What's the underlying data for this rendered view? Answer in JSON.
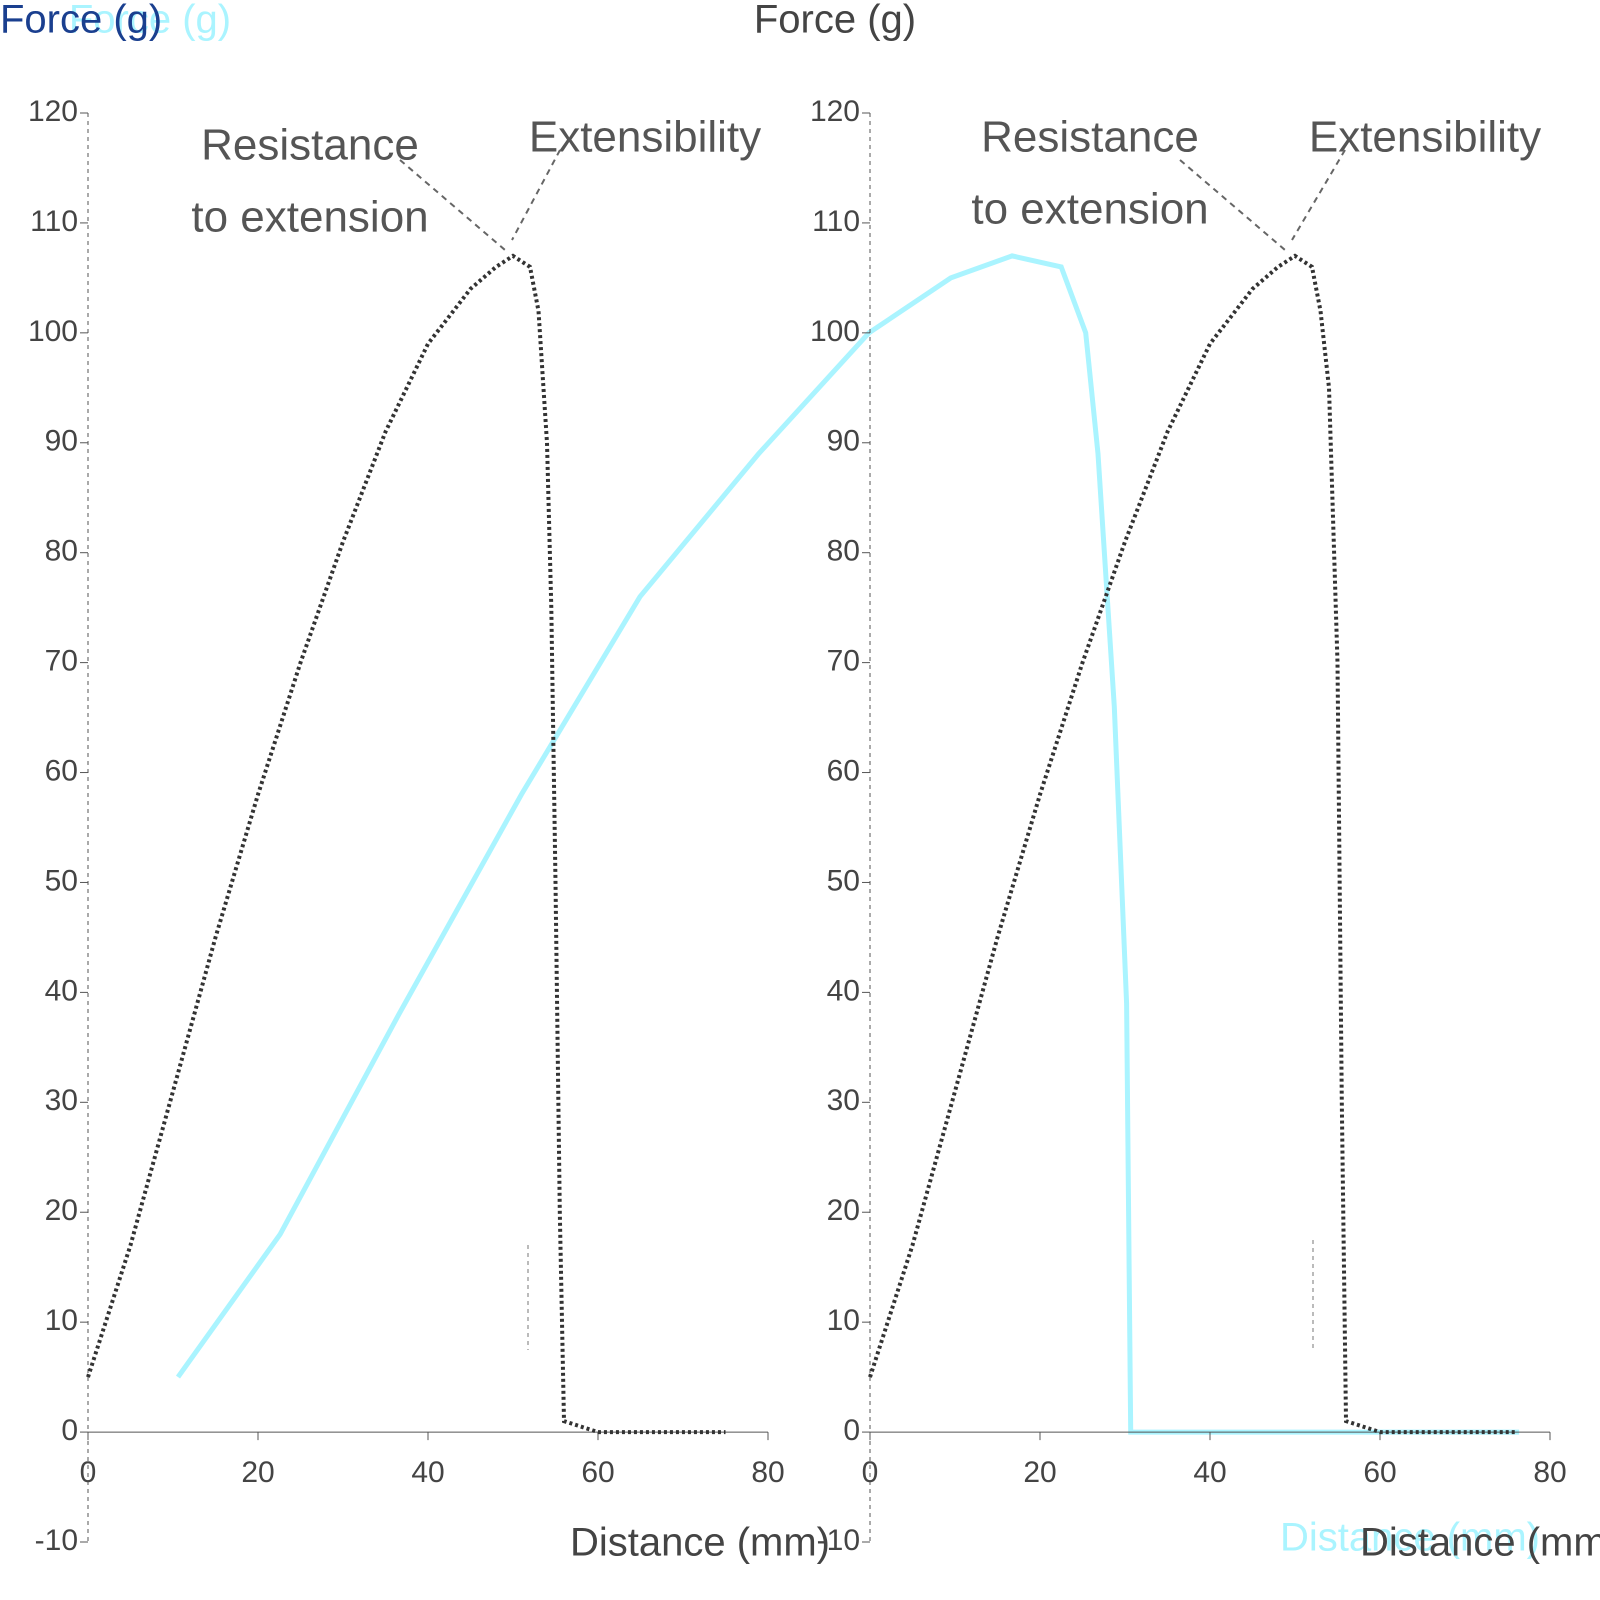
{
  "chart_data": [
    {
      "type": "line",
      "title": "Force (g)",
      "x_label": "Distance (mm)",
      "annotations": [
        [
          "Resistance",
          "to extension"
        ],
        [
          "Extensibility"
        ]
      ],
      "xlim": [
        0,
        80
      ],
      "ylim": [
        -10,
        120
      ],
      "xticks": [
        0,
        20,
        40,
        60,
        80
      ],
      "yticks": [
        -10,
        0,
        10,
        20,
        30,
        40,
        50,
        60,
        70,
        80,
        90,
        100,
        110,
        120
      ],
      "series": [
        {
          "name": "Force",
          "color": "#333333",
          "x": [
            0,
            5,
            10,
            15,
            20,
            25,
            30,
            35,
            40,
            45,
            48,
            50,
            52,
            53,
            54,
            54.5,
            55,
            55.5,
            56,
            60,
            75
          ],
          "values": [
            5,
            17,
            31,
            45,
            58,
            70,
            81,
            91,
            99,
            104,
            106,
            107,
            106,
            102,
            90,
            75,
            50,
            20,
            1,
            0,
            0
          ]
        }
      ]
    },
    {
      "type": "line",
      "title": "Force (g)",
      "x_label": "Distance (mm)",
      "annotations": [
        [
          "Resistance",
          "to extension"
        ],
        [
          "Extensibility"
        ]
      ],
      "xlim": [
        0,
        80
      ],
      "ylim": [
        -10,
        120
      ],
      "xticks": [
        0,
        20,
        40,
        60,
        80
      ],
      "yticks": [
        -10,
        0,
        10,
        20,
        30,
        40,
        50,
        60,
        70,
        80,
        90,
        100,
        110,
        120
      ],
      "series": [
        {
          "name": "Force",
          "color": "#333333",
          "x": [
            0,
            5,
            10,
            15,
            20,
            25,
            30,
            35,
            40,
            45,
            48,
            50,
            52,
            53,
            54,
            55,
            55.5,
            56,
            60,
            76
          ],
          "values": [
            5,
            17,
            31,
            45,
            58,
            70,
            81,
            91,
            99,
            104,
            106,
            107,
            106,
            102,
            95,
            70,
            30,
            1,
            0,
            0
          ]
        }
      ]
    },
    {
      "type": "line",
      "title": "Force (g)",
      "x_label": "Distance (mm)",
      "xlim": [
        0,
        180
      ],
      "ylim": [
        -10,
        120
      ],
      "series": [
        {
          "name": "Force",
          "color": "#aaf4ff",
          "x": [
            11,
            23.5,
            38,
            53,
            67.5,
            82,
            95.5,
            105.5,
            113,
            119,
            122,
            123.5,
            125.5,
            127,
            127.5,
            175
          ],
          "values": [
            5,
            18,
            38,
            58,
            76,
            89,
            100,
            105,
            107,
            106,
            100,
            89,
            66,
            39,
            0,
            0
          ]
        }
      ]
    }
  ]
}
